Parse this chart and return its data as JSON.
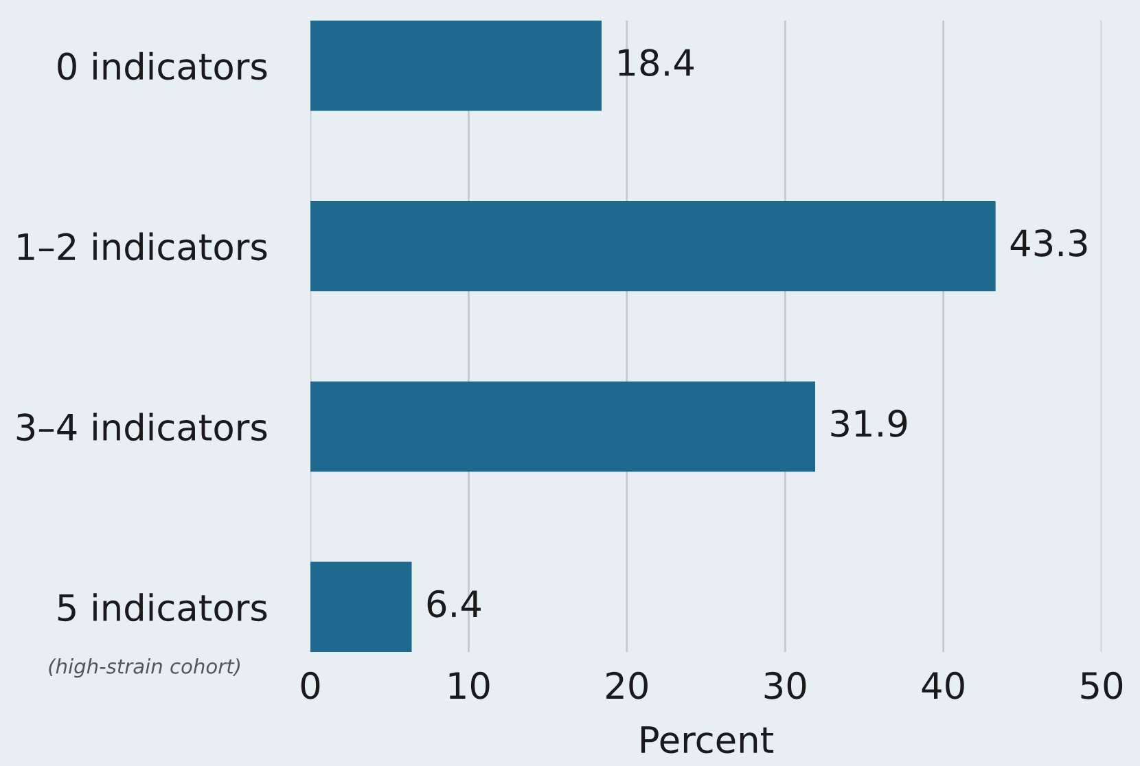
{
  "chart_data": {
    "type": "bar",
    "orientation": "horizontal",
    "categories": [
      "0 indicators",
      "1–2 indicators",
      "3–4 indicators",
      "5 indicators"
    ],
    "values": [
      18.4,
      43.3,
      31.9,
      6.4
    ],
    "color": "#1d6a8e",
    "xlabel": "Percent",
    "xlim": [
      0,
      50
    ],
    "xticks": [
      0,
      10,
      20,
      30,
      40,
      50
    ],
    "grid": "x",
    "data_labels": true,
    "annotations": [
      "(high-strain cohort)"
    ]
  }
}
